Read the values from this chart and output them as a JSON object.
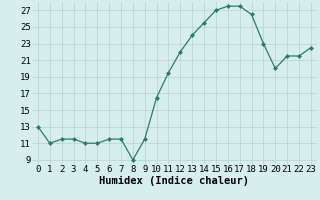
{
  "x": [
    0,
    1,
    2,
    3,
    4,
    5,
    6,
    7,
    8,
    9,
    10,
    11,
    12,
    13,
    14,
    15,
    16,
    17,
    18,
    19,
    20,
    21,
    22,
    23
  ],
  "y": [
    13,
    11,
    11.5,
    11.5,
    11,
    11,
    11.5,
    11.5,
    9,
    11.5,
    16.5,
    19.5,
    22,
    24,
    25.5,
    27,
    27.5,
    27.5,
    26.5,
    23,
    20,
    21.5,
    21.5,
    22.5
  ],
  "line_color": "#2a7d6e",
  "marker": "D",
  "marker_size": 2.0,
  "bg_color": "#d6eeee",
  "grid_color": "#b8d0d0",
  "xlabel": "Humidex (Indice chaleur)",
  "xlabel_fontsize": 7.5,
  "tick_fontsize": 6.5,
  "xlim": [
    -0.5,
    23.5
  ],
  "ylim": [
    8.5,
    28
  ],
  "yticks": [
    9,
    11,
    13,
    15,
    17,
    19,
    21,
    23,
    25,
    27
  ],
  "xticks": [
    0,
    1,
    2,
    3,
    4,
    5,
    6,
    7,
    8,
    9,
    10,
    11,
    12,
    13,
    14,
    15,
    16,
    17,
    18,
    19,
    20,
    21,
    22,
    23
  ]
}
